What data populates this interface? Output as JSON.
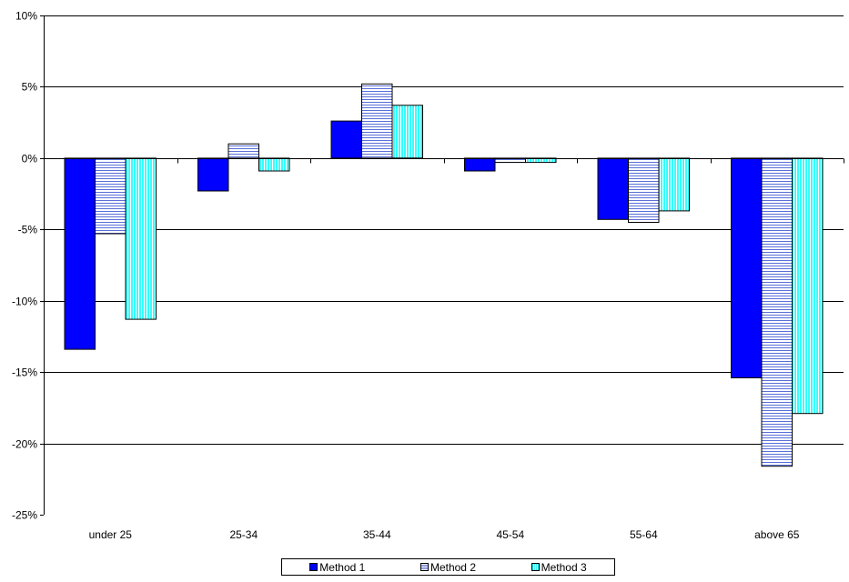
{
  "chart_data": {
    "type": "bar",
    "title": "",
    "xlabel": "",
    "ylabel": "",
    "categories": [
      "under 25",
      "25-34",
      "35-44",
      "45-54",
      "55-64",
      "above 65"
    ],
    "series": [
      {
        "name": "Method 1",
        "values": [
          -13.4,
          -2.3,
          2.6,
          -0.9,
          -4.3,
          -15.4
        ],
        "color": "#0000ff",
        "pattern": "solid"
      },
      {
        "name": "Method 2",
        "values": [
          -5.3,
          1.0,
          5.2,
          -0.3,
          -4.5,
          -21.6
        ],
        "color": "#5a6fd8",
        "pattern": "horizontal-lines"
      },
      {
        "name": "Method 3",
        "values": [
          -11.3,
          -0.9,
          3.7,
          -0.3,
          -3.7,
          -17.9
        ],
        "color": "#33ffff",
        "pattern": "vertical-lines"
      }
    ],
    "ylim": [
      -25,
      10
    ],
    "yticks": [
      10,
      5,
      0,
      -5,
      -10,
      -15,
      -20,
      -25
    ],
    "ytick_labels": [
      "10%",
      "5%",
      "0%",
      "-5%",
      "-10%",
      "-15%",
      "-20%",
      "-25%"
    ],
    "grid": true,
    "legend_position": "bottom"
  }
}
